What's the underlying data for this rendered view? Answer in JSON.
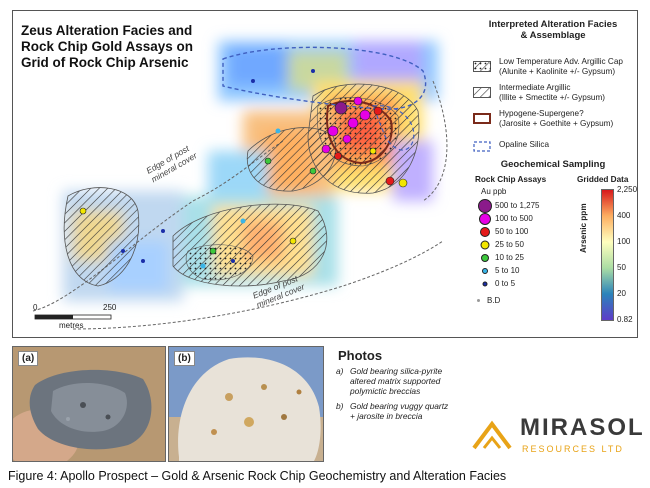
{
  "map": {
    "title_lines": [
      "Zeus Alteration Facies and",
      "Rock Chip Gold Assays on",
      "Grid of Rock Chip Arsenic"
    ],
    "cover_label_1": [
      "Edge of post",
      "mineral cover"
    ],
    "cover_label_2": [
      "Edge of post",
      "mineral cover"
    ],
    "scale": {
      "zero": "0",
      "end": "250",
      "unit": "metres"
    }
  },
  "legend": {
    "facies_heading": [
      "Interpreted Alteration Facies",
      "& Assemblage"
    ],
    "facies": [
      {
        "lines": [
          "Low Temperature Adv. Argillic Cap",
          "(Alunite + Kaolinite +/- Gypsum)"
        ],
        "symbol": "dotted-hatch"
      },
      {
        "lines": [
          "Intermediate Argillic",
          "(Illite + Smectite +/- Gypsum)"
        ],
        "symbol": "hatch"
      },
      {
        "lines": [
          "Hypogene-Supergene?",
          "(Jarosite + Goethite + Gypsum)"
        ],
        "symbol": "brown-outline"
      },
      {
        "lines": [
          "Opaline Silica"
        ],
        "symbol": "blue-dashed"
      }
    ],
    "geochem_heading": "Geochemical Sampling",
    "rock_chip_title": "Rock Chip Assays",
    "rock_chip_unit": "Au ppb",
    "gridded_title": "Gridded Data",
    "gridded_unit": "Arsenic ppm",
    "au_classes": [
      {
        "low": "500",
        "high": "1,275",
        "color": "#8b1a8b"
      },
      {
        "low": "100",
        "high": "500",
        "color": "#e600e6"
      },
      {
        "low": "50",
        "high": "100",
        "color": "#e41a1a"
      },
      {
        "low": "25",
        "high": "50",
        "color": "#f2e600"
      },
      {
        "low": "10",
        "high": "25",
        "color": "#3cc83c"
      },
      {
        "low": "5",
        "high": "10",
        "color": "#39b5e8"
      },
      {
        "low": "0",
        "high": "5",
        "color": "#1b2ea8"
      }
    ],
    "bd_label": "B.D",
    "as_ticks": [
      "2,250",
      "400",
      "100",
      "50",
      "20",
      "0.82"
    ],
    "ramp_colors": [
      "#d7191c",
      "#fdae61",
      "#ffffbf",
      "#abdda4",
      "#2b83ba",
      "#5e3cc8"
    ]
  },
  "photos": {
    "tag_a": "(a)",
    "tag_b": "(b)",
    "title": "Photos",
    "notes": [
      {
        "label": "a)",
        "lines": [
          "Gold bearing silica-pyrite",
          "altered matrix supported",
          "polymictic breccias"
        ]
      },
      {
        "label": "b)",
        "lines": [
          "Gold bearing vuggy quartz",
          "+ jarosite in breccia"
        ]
      }
    ]
  },
  "logo": {
    "name": "MIRASOL",
    "sub": "RESOURCES LTD",
    "colors": [
      "#e8a317",
      "#3a3a3a"
    ]
  },
  "caption": "Figure 4: Apollo Prospect – Gold & Arsenic Rock Chip Geochemistry and Alteration Facies"
}
